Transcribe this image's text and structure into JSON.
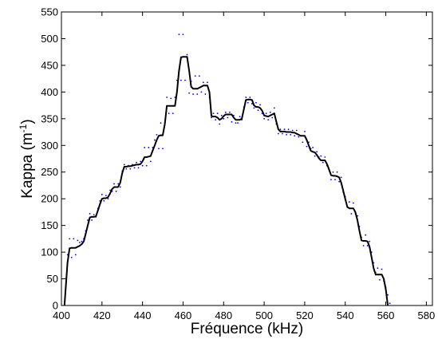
{
  "chart_data": {
    "type": "line",
    "title": "",
    "xlabel": "Fréquence (kHz)",
    "ylabel_main": "Kappa (m",
    "ylabel_sup": "-1",
    "ylabel_close": ")",
    "xlim": [
      400,
      583
    ],
    "ylim": [
      0,
      550
    ],
    "xticks": [
      400,
      420,
      440,
      460,
      480,
      500,
      520,
      540,
      560,
      580
    ],
    "yticks": [
      0,
      50,
      100,
      150,
      200,
      250,
      300,
      350,
      400,
      450,
      500,
      550
    ],
    "grid": false,
    "series": [
      {
        "style": "solid",
        "color": "#000000",
        "x": [
          401.5,
          403,
          404,
          405,
          406,
          407,
          408,
          409,
          410,
          411,
          412,
          413,
          414,
          415,
          416,
          417,
          418,
          419,
          420,
          421,
          422,
          423,
          424,
          425,
          426,
          427,
          428,
          429,
          430,
          431,
          432,
          433,
          434,
          435,
          436,
          437,
          438,
          439,
          440,
          441,
          442,
          443,
          444,
          445,
          446,
          447,
          448,
          449,
          450,
          451,
          452,
          453,
          454,
          455,
          456,
          457,
          458,
          459,
          460,
          461,
          462,
          463,
          464,
          465,
          466,
          467,
          468,
          469,
          470,
          471,
          472,
          473,
          474,
          475,
          476,
          477,
          478,
          479,
          480,
          481,
          482,
          483,
          484,
          485,
          486,
          487,
          488,
          489,
          490,
          491,
          492,
          493,
          494,
          495,
          496,
          497,
          498,
          499,
          500,
          501,
          502,
          503,
          504,
          505,
          506,
          507,
          508,
          509,
          510,
          511,
          512,
          513,
          514,
          515,
          516,
          517,
          518,
          519,
          520,
          521,
          522,
          523,
          524,
          525,
          526,
          527,
          528,
          529,
          530,
          531,
          532,
          533,
          534,
          535,
          536,
          537,
          538,
          539,
          540,
          541,
          542,
          543,
          544,
          545,
          546,
          547,
          548,
          549,
          550,
          551,
          552,
          553,
          554,
          555,
          556,
          557,
          558,
          559,
          560,
          561,
          562,
          563,
          564,
          565,
          566,
          567,
          568,
          569,
          570,
          571,
          572,
          573,
          574,
          575,
          576,
          577,
          578,
          579,
          580,
          581,
          582
        ],
        "y": [
          0,
          80,
          107,
          108,
          108,
          108,
          110,
          112,
          115,
          120,
          135,
          150,
          165,
          166,
          166,
          167,
          178,
          190,
          200,
          201,
          201,
          203,
          210,
          218,
          222,
          222,
          222,
          230,
          248,
          260,
          260,
          261,
          261,
          262,
          263,
          264,
          264,
          265,
          270,
          278,
          278,
          279,
          280,
          290,
          300,
          310,
          318,
          319,
          319,
          340,
          374,
          374,
          374,
          374,
          374,
          400,
          440,
          465,
          466,
          466,
          466,
          440,
          410,
          406,
          406,
          406,
          408,
          410,
          412,
          412,
          412,
          400,
          355,
          354,
          354,
          352,
          348,
          350,
          355,
          358,
          358,
          358,
          358,
          352,
          348,
          348,
          348,
          350,
          368,
          385,
          386,
          386,
          385,
          375,
          372,
          372,
          370,
          365,
          356,
          355,
          354,
          356,
          358,
          360,
          345,
          330,
          326,
          326,
          326,
          325,
          325,
          325,
          324,
          324,
          322,
          320,
          318,
          318,
          318,
          310,
          300,
          290,
          288,
          287,
          282,
          276,
          272,
          272,
          272,
          265,
          255,
          244,
          243,
          243,
          242,
          240,
          230,
          215,
          200,
          185,
          182,
          182,
          182,
          175,
          160,
          140,
          122,
          121,
          121,
          120,
          110,
          90,
          70,
          58,
          58,
          58,
          58,
          50,
          30,
          0,
          0,
          0,
          0,
          0,
          0,
          0,
          0,
          0,
          0,
          0,
          0,
          0,
          0,
          0,
          0,
          0,
          0,
          0,
          0,
          0,
          0
        ]
      },
      {
        "style": "dotted",
        "color": "#0000ff",
        "x": [
          401.5,
          403,
          404,
          405,
          406,
          407,
          408,
          409,
          410,
          411,
          412,
          413,
          414,
          415,
          416,
          417,
          418,
          419,
          420,
          421,
          422,
          423,
          424,
          425,
          426,
          427,
          428,
          429,
          430,
          431,
          432,
          433,
          434,
          435,
          436,
          437,
          438,
          439,
          440,
          441,
          442,
          443,
          444,
          445,
          446,
          447,
          448,
          449,
          450,
          451,
          452,
          453,
          454,
          455,
          456,
          457,
          458,
          459,
          460,
          461,
          462,
          463,
          464,
          465,
          466,
          467,
          468,
          469,
          470,
          471,
          472,
          473,
          474,
          475,
          476,
          477,
          478,
          479,
          480,
          481,
          482,
          483,
          484,
          485,
          486,
          487,
          488,
          489,
          490,
          491,
          492,
          493,
          494,
          495,
          496,
          497,
          498,
          499,
          500,
          501,
          502,
          503,
          504,
          505,
          506,
          507,
          508,
          509,
          510,
          511,
          512,
          513,
          514,
          515,
          516,
          517,
          518,
          519,
          520,
          521,
          522,
          523,
          524,
          525,
          526,
          527,
          528,
          529,
          530,
          531,
          532,
          533,
          534,
          535,
          536,
          537,
          538,
          539,
          540,
          541,
          542,
          543,
          544,
          545,
          546,
          547,
          548,
          549,
          550,
          551,
          552,
          553,
          554,
          555,
          556,
          557,
          558,
          559,
          560,
          561,
          562,
          563,
          564,
          565,
          566,
          567,
          568,
          569,
          570,
          571,
          572,
          573,
          574,
          575,
          576,
          577,
          578,
          579,
          580,
          581,
          582
        ],
        "y": [
          0,
          95,
          125,
          90,
          125,
          95,
          122,
          118,
          120,
          125,
          140,
          160,
          172,
          160,
          170,
          166,
          182,
          196,
          208,
          196,
          206,
          200,
          216,
          214,
          228,
          214,
          228,
          222,
          252,
          264,
          256,
          262,
          256,
          264,
          258,
          268,
          258,
          270,
          262,
          296,
          262,
          296,
          270,
          296,
          310,
          320,
          294,
          342,
          294,
          342,
          390,
          360,
          388,
          360,
          390,
          422,
          508,
          422,
          508,
          422,
          470,
          398,
          420,
          396,
          430,
          396,
          430,
          400,
          418,
          396,
          418,
          390,
          352,
          360,
          348,
          360,
          340,
          356,
          350,
          362,
          352,
          362,
          344,
          356,
          342,
          342,
          354,
          348,
          372,
          390,
          380,
          390,
          378,
          370,
          380,
          366,
          376,
          360,
          350,
          360,
          348,
          362,
          352,
          370,
          340,
          322,
          330,
          322,
          330,
          320,
          330,
          320,
          328,
          318,
          328,
          316,
          318,
          306,
          326,
          298,
          306,
          294,
          296,
          280,
          288,
          278,
          280,
          268,
          278,
          262,
          254,
          236,
          250,
          236,
          250,
          232,
          240,
          212,
          204,
          184,
          194,
          172,
          192,
          172,
          168,
          148,
          128,
          112,
          132,
          112,
          120,
          100,
          80,
          62,
          70,
          48,
          68,
          46,
          34,
          20,
          4,
          0,
          0,
          0,
          0,
          0,
          0,
          0,
          0,
          0,
          0,
          0,
          0,
          0,
          0,
          0,
          0,
          0,
          0,
          0,
          0
        ]
      }
    ]
  }
}
